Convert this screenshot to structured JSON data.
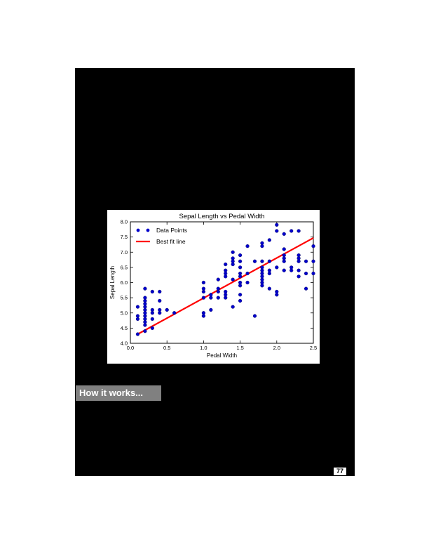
{
  "section": {
    "heading": "How it works..."
  },
  "page_number": "77",
  "chart_data": {
    "type": "scatter",
    "title": "Sepal Length vs Pedal Width",
    "xlabel": "Pedal Width",
    "ylabel": "Sepal Length",
    "xlim": [
      0.0,
      2.5
    ],
    "ylim": [
      4.0,
      8.0
    ],
    "xticks": [
      "0.0",
      "0.5",
      "1.0",
      "1.5",
      "2.0",
      "2.5"
    ],
    "yticks": [
      "4.0",
      "4.5",
      "5.0",
      "5.5",
      "6.0",
      "6.5",
      "7.0",
      "7.5",
      "8.0"
    ],
    "grid": false,
    "legend_position": "top-left",
    "series": [
      {
        "name": "Data Points",
        "color": "#0000cc",
        "marker": "circle",
        "points": [
          [
            0.1,
            4.3
          ],
          [
            0.1,
            4.8
          ],
          [
            0.1,
            4.9
          ],
          [
            0.1,
            5.2
          ],
          [
            0.2,
            4.4
          ],
          [
            0.2,
            4.6
          ],
          [
            0.2,
            4.7
          ],
          [
            0.2,
            4.8
          ],
          [
            0.2,
            4.9
          ],
          [
            0.2,
            5.0
          ],
          [
            0.2,
            5.1
          ],
          [
            0.2,
            5.2
          ],
          [
            0.2,
            5.3
          ],
          [
            0.2,
            5.4
          ],
          [
            0.2,
            5.5
          ],
          [
            0.2,
            5.8
          ],
          [
            0.3,
            4.5
          ],
          [
            0.3,
            4.8
          ],
          [
            0.3,
            5.0
          ],
          [
            0.3,
            5.1
          ],
          [
            0.3,
            5.7
          ],
          [
            0.4,
            5.0
          ],
          [
            0.4,
            5.1
          ],
          [
            0.4,
            5.4
          ],
          [
            0.4,
            5.7
          ],
          [
            0.5,
            5.1
          ],
          [
            0.6,
            5.0
          ],
          [
            1.0,
            4.9
          ],
          [
            1.0,
            5.0
          ],
          [
            1.0,
            5.5
          ],
          [
            1.0,
            5.7
          ],
          [
            1.0,
            5.8
          ],
          [
            1.0,
            6.0
          ],
          [
            1.1,
            5.1
          ],
          [
            1.1,
            5.5
          ],
          [
            1.1,
            5.6
          ],
          [
            1.2,
            5.5
          ],
          [
            1.2,
            5.7
          ],
          [
            1.2,
            5.8
          ],
          [
            1.2,
            6.1
          ],
          [
            1.3,
            5.5
          ],
          [
            1.3,
            5.6
          ],
          [
            1.3,
            5.7
          ],
          [
            1.3,
            6.2
          ],
          [
            1.3,
            6.3
          ],
          [
            1.3,
            6.4
          ],
          [
            1.3,
            6.6
          ],
          [
            1.4,
            5.2
          ],
          [
            1.4,
            6.1
          ],
          [
            1.4,
            6.6
          ],
          [
            1.4,
            6.7
          ],
          [
            1.4,
            6.8
          ],
          [
            1.4,
            7.0
          ],
          [
            1.5,
            5.4
          ],
          [
            1.5,
            5.6
          ],
          [
            1.5,
            5.9
          ],
          [
            1.5,
            6.0
          ],
          [
            1.5,
            6.2
          ],
          [
            1.5,
            6.3
          ],
          [
            1.5,
            6.5
          ],
          [
            1.5,
            6.7
          ],
          [
            1.5,
            6.9
          ],
          [
            1.6,
            6.0
          ],
          [
            1.6,
            6.3
          ],
          [
            1.6,
            7.2
          ],
          [
            1.7,
            4.9
          ],
          [
            1.7,
            6.7
          ],
          [
            1.8,
            5.9
          ],
          [
            1.8,
            6.0
          ],
          [
            1.8,
            6.1
          ],
          [
            1.8,
            6.2
          ],
          [
            1.8,
            6.3
          ],
          [
            1.8,
            6.4
          ],
          [
            1.8,
            6.5
          ],
          [
            1.8,
            6.7
          ],
          [
            1.8,
            7.2
          ],
          [
            1.8,
            7.3
          ],
          [
            1.9,
            5.8
          ],
          [
            1.9,
            6.3
          ],
          [
            1.9,
            6.4
          ],
          [
            1.9,
            6.7
          ],
          [
            1.9,
            7.4
          ],
          [
            2.0,
            5.6
          ],
          [
            2.0,
            5.7
          ],
          [
            2.0,
            6.5
          ],
          [
            2.0,
            7.7
          ],
          [
            2.0,
            7.9
          ],
          [
            2.1,
            6.4
          ],
          [
            2.1,
            6.7
          ],
          [
            2.1,
            6.8
          ],
          [
            2.1,
            6.9
          ],
          [
            2.1,
            7.1
          ],
          [
            2.1,
            7.6
          ],
          [
            2.2,
            6.4
          ],
          [
            2.2,
            6.5
          ],
          [
            2.2,
            7.7
          ],
          [
            2.3,
            6.2
          ],
          [
            2.3,
            6.4
          ],
          [
            2.3,
            6.7
          ],
          [
            2.3,
            6.8
          ],
          [
            2.3,
            6.9
          ],
          [
            2.3,
            7.7
          ],
          [
            2.4,
            5.8
          ],
          [
            2.4,
            6.3
          ],
          [
            2.4,
            6.7
          ],
          [
            2.5,
            6.3
          ],
          [
            2.5,
            6.7
          ],
          [
            2.5,
            7.2
          ]
        ]
      },
      {
        "name": "Best fit line",
        "color": "#ff0000",
        "type": "line",
        "points": [
          [
            0.1,
            4.3
          ],
          [
            2.5,
            7.47
          ]
        ]
      }
    ]
  }
}
